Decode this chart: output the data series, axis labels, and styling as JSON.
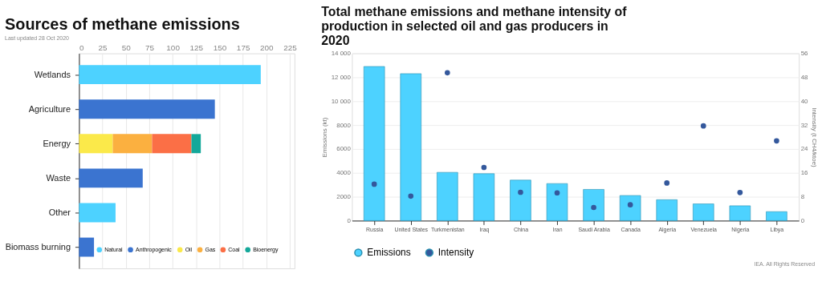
{
  "chart_data": [
    {
      "type": "bar",
      "title": "Sources of methane emissions",
      "subtitle": "Last updated 28 Oct 2020",
      "orientation": "horizontal",
      "stacked": true,
      "categories": [
        "Wetlands",
        "Agriculture",
        "Energy",
        "Waste",
        "Other",
        "Biomass burning"
      ],
      "series": [
        {
          "name": "Natural",
          "color": "#4dd2ff",
          "values": [
            194,
            null,
            null,
            null,
            39,
            null
          ]
        },
        {
          "name": "Anthropogenic",
          "color": "#3b74d0",
          "values": [
            null,
            145,
            null,
            68,
            null,
            16
          ]
        },
        {
          "name": "Oil",
          "color": "#fbe94a",
          "values": [
            null,
            null,
            36,
            null,
            null,
            null
          ]
        },
        {
          "name": "Gas",
          "color": "#fbb040",
          "values": [
            null,
            null,
            42,
            null,
            null,
            null
          ]
        },
        {
          "name": "Coal",
          "color": "#fb6f46",
          "values": [
            null,
            null,
            42,
            null,
            null,
            null
          ]
        },
        {
          "name": "Bioenergy",
          "color": "#14a89a",
          "values": [
            null,
            null,
            10,
            null,
            null,
            null
          ]
        }
      ],
      "xlim": [
        0,
        230
      ],
      "xticks": [
        0,
        25,
        50,
        75,
        100,
        125,
        150,
        175,
        200,
        225
      ],
      "grid": "x",
      "legend": "bottom right"
    },
    {
      "type": "bar",
      "title": "Total methane emissions and methane intensity of production in selected oil and gas producers in 2020",
      "ylabel": "Emissions (kt)",
      "y2label": "Intensity (t CH4/ktoe)",
      "categories": [
        "Russia",
        "United States",
        "Turkmenistan",
        "Iraq",
        "China",
        "Iran",
        "Saudi Arabia",
        "Canada",
        "Algeria",
        "Venezuela",
        "Nigeria",
        "Libya"
      ],
      "series": [
        {
          "name": "Emissions",
          "type": "bar",
          "color": "#4dd2ff",
          "values": [
            12900,
            12300,
            4040,
            3930,
            3390,
            3100,
            2610,
            2100,
            1750,
            1400,
            1240,
            750
          ]
        },
        {
          "name": "Intensity",
          "type": "scatter",
          "axis": "y2",
          "color": "#34589c",
          "values": [
            12.2,
            8.2,
            49.5,
            17.8,
            9.5,
            9.3,
            4.4,
            5.3,
            12.6,
            31.7,
            9.4,
            26.7
          ]
        }
      ],
      "ylim": [
        0,
        14000
      ],
      "yticks": [
        0,
        2000,
        4000,
        6000,
        8000,
        {
          "value": 10000,
          "label": "10 000"
        },
        {
          "value": 12000,
          "label": "12 000"
        },
        {
          "value": 14000,
          "label": "14 000"
        }
      ],
      "y2lim": [
        0,
        56
      ],
      "y2ticks": [
        0,
        8,
        16,
        24,
        32,
        40,
        48,
        56
      ],
      "grid": "y",
      "legend": "bottom",
      "marker": "circle",
      "annotations": [
        "IEA. All Rights Reserved"
      ]
    }
  ]
}
